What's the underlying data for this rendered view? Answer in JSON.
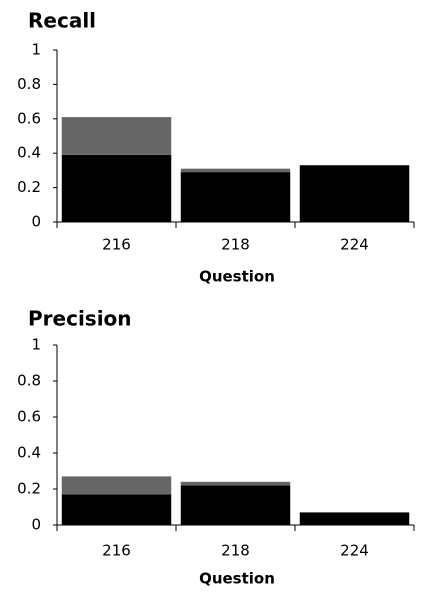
{
  "chart_data": [
    {
      "type": "stacked_bar",
      "title": "Recall",
      "x_label": "Question",
      "categories": [
        "216",
        "218",
        "224"
      ],
      "series": [
        {
          "color": "#000000",
          "values": [
            0.39,
            0.29,
            0.33
          ]
        },
        {
          "color": "#666666",
          "values": [
            0.22,
            0.02,
            0
          ]
        }
      ],
      "ylim": [
        0,
        1
      ],
      "yticks": [
        0,
        0.2,
        0.4,
        0.6,
        0.8,
        1
      ]
    },
    {
      "type": "stacked_bar",
      "title": "Precision",
      "x_label": "Question",
      "categories": [
        "216",
        "218",
        "224"
      ],
      "series": [
        {
          "color": "#000000",
          "values": [
            0.17,
            0.22,
            0.07
          ]
        },
        {
          "color": "#666666",
          "values": [
            0.1,
            0.02,
            0
          ]
        }
      ],
      "ylim": [
        0,
        1
      ],
      "yticks": [
        0,
        0.2,
        0.4,
        0.6,
        0.8,
        1
      ]
    }
  ]
}
